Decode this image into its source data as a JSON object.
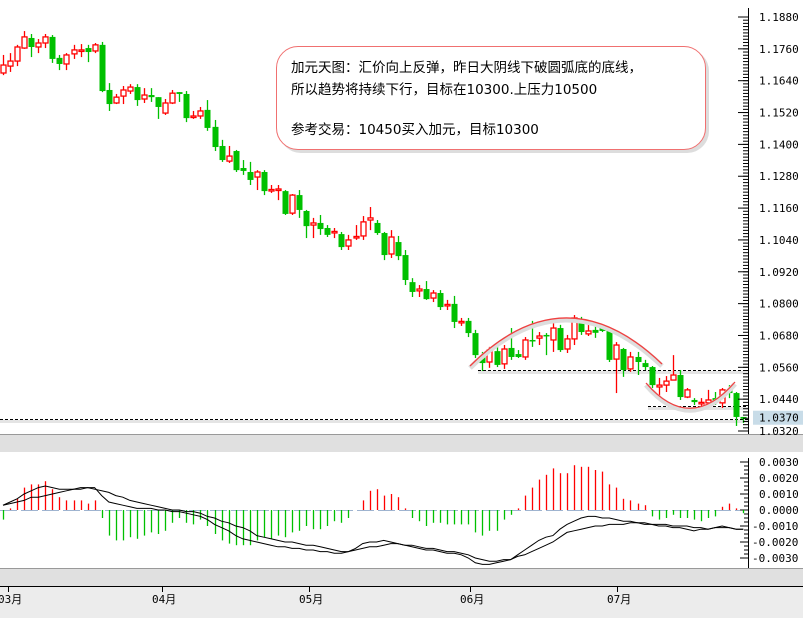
{
  "annotation": {
    "line1": "加元天图：汇价向上反弹，昨日大阴线下破圆弧底的底线，",
    "line2": "所以趋势将持续下行，目标在10300.上压力10500",
    "line3": "参考交易：10450买入加元，目标10300"
  },
  "colors": {
    "up": "#ff0000",
    "down": "#00c000",
    "line": "#000000",
    "arc": "#f04040",
    "last_price_bg": "#c8dce8"
  },
  "chart_data": [
    {
      "type": "candlestick",
      "price_axis": {
        "ticks": [
          "1.1880",
          "1.1760",
          "1.1640",
          "1.1520",
          "1.1400",
          "1.1280",
          "1.1160",
          "1.1040",
          "1.0920",
          "1.0800",
          "1.0680",
          "1.0560",
          "1.0440",
          "1.0320"
        ],
        "ylim": [
          1.032,
          1.188
        ]
      },
      "last_price": "1.0370",
      "x_ticks": [
        "03月",
        "04月",
        "05月",
        "06月",
        "07月"
      ],
      "horizontal_lines": [
        1.055,
        1.0414,
        1.0365
      ],
      "ohlc": [
        [
          1.1669,
          1.1737,
          1.1661,
          1.1699
        ],
        [
          1.1695,
          1.1744,
          1.1673,
          1.1714
        ],
        [
          1.1714,
          1.1775,
          1.1695,
          1.1767
        ],
        [
          1.1763,
          1.1827,
          1.176,
          1.1805
        ],
        [
          1.1801,
          1.1816,
          1.1729,
          1.1767
        ],
        [
          1.1767,
          1.1797,
          1.1744,
          1.1782
        ],
        [
          1.1782,
          1.1816,
          1.1763,
          1.1805
        ],
        [
          1.1805,
          1.1812,
          1.1707,
          1.1722
        ],
        [
          1.1726,
          1.1737,
          1.168,
          1.1703
        ],
        [
          1.1703,
          1.1744,
          1.168,
          1.1737
        ],
        [
          1.1741,
          1.1775,
          1.1722,
          1.1756
        ],
        [
          1.1752,
          1.1778,
          1.1729,
          1.1756
        ],
        [
          1.1763,
          1.1775,
          1.171,
          1.1748
        ],
        [
          1.1752,
          1.1782,
          1.1744,
          1.1775
        ],
        [
          1.1775,
          1.1786,
          1.1597,
          1.1601
        ],
        [
          1.1605,
          1.1631,
          1.1526,
          1.1552
        ],
        [
          1.1556,
          1.159,
          1.1552,
          1.1578
        ],
        [
          1.1582,
          1.162,
          1.1552,
          1.1605
        ],
        [
          1.1601,
          1.1627,
          1.159,
          1.1616
        ],
        [
          1.1616,
          1.1627,
          1.1545,
          1.1567
        ],
        [
          1.1571,
          1.1612,
          1.1556,
          1.1586
        ],
        [
          1.1586,
          1.1612,
          1.156,
          1.1578
        ],
        [
          1.1578,
          1.1578,
          1.1496,
          1.1541
        ],
        [
          1.1518,
          1.1571,
          1.1511,
          1.1556
        ],
        [
          1.1556,
          1.1605,
          1.1552,
          1.1593
        ],
        [
          1.1597,
          1.1597,
          1.156,
          1.159
        ],
        [
          1.159,
          1.1601,
          1.1484,
          1.1499
        ],
        [
          1.1503,
          1.1526,
          1.1496,
          1.1507
        ],
        [
          1.1507,
          1.1541,
          1.1496,
          1.1526
        ],
        [
          1.153,
          1.1567,
          1.1451,
          1.1462
        ],
        [
          1.1466,
          1.1492,
          1.1375,
          1.139
        ],
        [
          1.1394,
          1.1417,
          1.1334,
          1.1341
        ],
        [
          1.1337,
          1.1394,
          1.133,
          1.1356
        ],
        [
          1.1375,
          1.1379,
          1.1296,
          1.1303
        ],
        [
          1.1311,
          1.1341,
          1.1285,
          1.13
        ],
        [
          1.1296,
          1.1334,
          1.1247,
          1.1266
        ],
        [
          1.1277,
          1.1303,
          1.1228,
          1.1296
        ],
        [
          1.1296,
          1.1303,
          1.1209,
          1.1224
        ],
        [
          1.1226,
          1.1247,
          1.1217,
          1.123
        ],
        [
          1.1228,
          1.1247,
          1.119,
          1.1232
        ],
        [
          1.1224,
          1.1228,
          1.1134,
          1.1138
        ],
        [
          1.1141,
          1.1213,
          1.1134,
          1.1209
        ],
        [
          1.1209,
          1.1228,
          1.1123,
          1.1153
        ],
        [
          1.1149,
          1.1153,
          1.1047,
          1.1092
        ],
        [
          1.1096,
          1.1123,
          1.1047,
          1.1104
        ],
        [
          1.1104,
          1.1134,
          1.1059,
          1.1081
        ],
        [
          1.1085,
          1.1096,
          1.1051,
          1.1059
        ],
        [
          1.1068,
          1.1085,
          1.1047,
          1.1072
        ],
        [
          1.1062,
          1.107,
          1.1002,
          1.1013
        ],
        [
          1.1017,
          1.1059,
          1.1002,
          1.104
        ],
        [
          1.1049,
          1.1096,
          1.104,
          1.1053
        ],
        [
          1.1055,
          1.113,
          1.104,
          1.1108
        ],
        [
          1.1115,
          1.1164,
          1.1077,
          1.1123
        ],
        [
          1.1104,
          1.1115,
          1.1059,
          1.1066
        ],
        [
          1.1066,
          1.107,
          1.0964,
          1.0983
        ],
        [
          1.0987,
          1.1077,
          1.0972,
          1.1051
        ],
        [
          1.1032,
          1.1055,
          1.0964,
          1.0979
        ],
        [
          1.0983,
          1.1002,
          1.087,
          1.0889
        ],
        [
          1.0881,
          1.0896,
          1.0825,
          1.0844
        ],
        [
          1.0848,
          1.087,
          1.0825,
          1.0855
        ],
        [
          1.0855,
          1.0885,
          1.0814,
          1.0817
        ],
        [
          1.0821,
          1.0851,
          1.0806,
          1.084
        ],
        [
          1.084,
          1.0851,
          1.0776,
          1.0787
        ],
        [
          1.0793,
          1.0814,
          1.0776,
          1.0797
        ],
        [
          1.0799,
          1.0829,
          1.0708,
          1.0731
        ],
        [
          1.0729,
          1.0746,
          1.0716,
          1.0733
        ],
        [
          1.0735,
          1.0746,
          1.0674,
          1.0689
        ],
        [
          1.0689,
          1.0701,
          1.0595,
          1.0606
        ],
        [
          1.0603,
          1.0618,
          1.0546,
          1.0576
        ],
        [
          1.058,
          1.0637,
          1.0558,
          1.0625
        ],
        [
          1.0621,
          1.0637,
          1.0561,
          1.0569
        ],
        [
          1.0573,
          1.0644,
          1.0554,
          1.0629
        ],
        [
          1.0633,
          1.0708,
          1.0588,
          1.0599
        ],
        [
          1.061,
          1.0625,
          1.0595,
          1.0599
        ],
        [
          1.0599,
          1.0674,
          1.0588,
          1.0663
        ],
        [
          1.0663,
          1.0735,
          1.0637,
          1.0659
        ],
        [
          1.067,
          1.0693,
          1.0644,
          1.0678
        ],
        [
          1.0682,
          1.0689,
          1.0606,
          1.0678
        ],
        [
          1.0663,
          1.0738,
          1.0618,
          1.0708
        ],
        [
          1.0708,
          1.072,
          1.0618,
          1.0625
        ],
        [
          1.0629,
          1.0682,
          1.0614,
          1.0667
        ],
        [
          1.0667,
          1.0757,
          1.0644,
          1.0746
        ],
        [
          1.0742,
          1.075,
          1.0682,
          1.0693
        ],
        [
          1.0686,
          1.0727,
          1.0678,
          1.0697
        ],
        [
          1.0701,
          1.0723,
          1.0671,
          1.069
        ],
        [
          1.0712,
          1.072,
          1.0693,
          1.0697
        ],
        [
          1.0704,
          1.0708,
          1.058,
          1.0588
        ],
        [
          1.0591,
          1.0655,
          1.0463,
          1.0644
        ],
        [
          1.0629,
          1.0633,
          1.0524,
          1.055
        ],
        [
          1.0554,
          1.0618,
          1.0543,
          1.0599
        ],
        [
          1.0599,
          1.0618,
          1.0531,
          1.058
        ],
        [
          1.0576,
          1.0588,
          1.055,
          1.0561
        ],
        [
          1.0561,
          1.0565,
          1.0482,
          1.0493
        ],
        [
          1.0486,
          1.052,
          1.0444,
          1.0493
        ],
        [
          1.0493,
          1.0527,
          1.0467,
          1.0508
        ],
        [
          1.0512,
          1.0606,
          1.0512,
          1.0531
        ],
        [
          1.0531,
          1.055,
          1.0437,
          1.0448
        ],
        [
          1.0448,
          1.0482,
          1.0444,
          1.0475
        ],
        [
          1.0437,
          1.0444,
          1.0418,
          1.0429
        ],
        [
          1.0424,
          1.0444,
          1.0407,
          1.0428
        ],
        [
          1.0426,
          1.0475,
          1.0407,
          1.0437
        ],
        [
          1.0444,
          1.0467,
          1.0418,
          1.0433
        ],
        [
          1.0426,
          1.0482,
          1.0407,
          1.0475
        ],
        [
          1.0475,
          1.0493,
          1.0444,
          1.0463
        ],
        [
          1.0463,
          1.0467,
          1.0339,
          1.0373
        ],
        [
          1.0373,
          1.0373,
          1.035,
          1.0366
        ]
      ]
    },
    {
      "type": "macd",
      "axis": {
        "ticks": [
          "0.0030",
          "0.0020",
          "0.0010",
          "0.0000",
          "-0.0010",
          "-0.0020",
          "-0.0030"
        ],
        "ylim": [
          -0.003,
          0.003
        ]
      },
      "histogram": [
        -0.0006,
        0.0001,
        0.0007,
        0.0014,
        0.0016,
        0.0016,
        0.0018,
        0.0013,
        0.0008,
        0.0006,
        0.0006,
        0.0006,
        0.0004,
        0.0006,
        -0.0005,
        -0.0016,
        -0.0019,
        -0.0019,
        -0.0017,
        -0.0018,
        -0.0016,
        -0.0014,
        -0.0015,
        -0.0013,
        -0.0008,
        -0.0005,
        -0.0008,
        -0.0009,
        -0.0006,
        -0.001,
        -0.0015,
        -0.0019,
        -0.0021,
        -0.0022,
        -0.0022,
        -0.0022,
        -0.0019,
        -0.0017,
        -0.0018,
        -0.0016,
        -0.0017,
        -0.0014,
        -0.0013,
        -0.001,
        -0.0012,
        -0.0012,
        -0.001,
        -0.0007,
        -0.0008,
        -0.0005,
        0.0,
        0.0006,
        0.0012,
        0.0013,
        0.0009,
        0.001,
        0.0008,
        0.0001,
        -0.0005,
        -0.0007,
        -0.001,
        -0.0008,
        -0.0008,
        -0.0009,
        -0.0009,
        -0.0009,
        -0.0009,
        -0.0014,
        -0.0016,
        -0.0013,
        -0.0013,
        -0.0006,
        -0.0003,
        0.0001,
        0.0009,
        0.0014,
        0.0019,
        0.0022,
        0.0026,
        0.0023,
        0.0023,
        0.0028,
        0.0027,
        0.0027,
        0.0025,
        0.0024,
        0.0016,
        0.0014,
        0.0007,
        0.0006,
        0.0004,
        0.0003,
        -0.0004,
        -0.0006,
        -0.0005,
        -0.0003,
        -0.0005,
        -0.0005,
        -0.0006,
        -0.0007,
        -0.0005,
        -0.0004,
        0.0002,
        0.0004,
        0.0001,
        -0.0002
      ],
      "dif": [
        0.0003,
        0.0005,
        0.0007,
        0.001,
        0.0012,
        0.0014,
        0.0015,
        0.0014,
        0.0013,
        0.0013,
        0.0013,
        0.0014,
        0.0014,
        0.0014,
        0.0009,
        0.0005,
        0.0004,
        0.0003,
        0.0002,
        0.0001,
        0.0001,
        0.0001,
        0.0,
        0.0,
        -0.0001,
        -0.0001,
        -0.0002,
        -0.0003,
        -0.0004,
        -0.0006,
        -0.0009,
        -0.0011,
        -0.0013,
        -0.0016,
        -0.0018,
        -0.0019,
        -0.002,
        -0.0021,
        -0.0022,
        -0.0023,
        -0.0023,
        -0.0024,
        -0.0024,
        -0.0025,
        -0.0025,
        -0.0026,
        -0.0026,
        -0.0027,
        -0.0027,
        -0.0026,
        -0.0024,
        -0.0021,
        -0.002,
        -0.002,
        -0.0019,
        -0.002,
        -0.0021,
        -0.0022,
        -0.0023,
        -0.0024,
        -0.0025,
        -0.0025,
        -0.0026,
        -0.0027,
        -0.0027,
        -0.0028,
        -0.003,
        -0.0033,
        -0.0034,
        -0.0034,
        -0.0033,
        -0.0032,
        -0.0031,
        -0.0028,
        -0.0025,
        -0.0022,
        -0.0019,
        -0.0017,
        -0.0016,
        -0.0012,
        -0.0009,
        -0.0007,
        -0.0005,
        -0.0004,
        -0.0004,
        -0.0005,
        -0.0005,
        -0.0006,
        -0.0007,
        -0.0007,
        -0.0008,
        -0.0009,
        -0.0009,
        -0.001,
        -0.001,
        -0.0011,
        -0.0011,
        -0.0012,
        -0.0013,
        -0.0012,
        -0.0012,
        -0.0011,
        -0.001,
        -0.0011,
        -0.0012,
        -0.0012
      ],
      "dea": [
        0.0003,
        0.0004,
        0.0005,
        0.0006,
        0.0008,
        0.0008,
        0.0009,
        0.001,
        0.0011,
        0.0012,
        0.0013,
        0.0013,
        0.0014,
        0.0013,
        0.0012,
        0.0011,
        0.0009,
        0.0008,
        0.0006,
        0.0005,
        0.0004,
        0.0003,
        0.0002,
        0.0001,
        0.0,
        0.0,
        -0.0001,
        -0.0001,
        -0.0002,
        -0.0004,
        -0.0005,
        -0.0007,
        -0.0008,
        -0.001,
        -0.0011,
        -0.0013,
        -0.0016,
        -0.0017,
        -0.0018,
        -0.0019,
        -0.002,
        -0.002,
        -0.0021,
        -0.0022,
        -0.0022,
        -0.0023,
        -0.0024,
        -0.0025,
        -0.0026,
        -0.0026,
        -0.0025,
        -0.0024,
        -0.0023,
        -0.0023,
        -0.0022,
        -0.0021,
        -0.0021,
        -0.0022,
        -0.0022,
        -0.0023,
        -0.0024,
        -0.0024,
        -0.0025,
        -0.0026,
        -0.0026,
        -0.0027,
        -0.0028,
        -0.003,
        -0.0031,
        -0.0032,
        -0.0032,
        -0.0031,
        -0.0031,
        -0.0029,
        -0.0028,
        -0.0026,
        -0.0024,
        -0.0022,
        -0.002,
        -0.0017,
        -0.0014,
        -0.0013,
        -0.0012,
        -0.0011,
        -0.001,
        -0.001,
        -0.0009,
        -0.0009,
        -0.0009,
        -0.0008,
        -0.0008,
        -0.0008,
        -0.0009,
        -0.0009,
        -0.0009,
        -0.001,
        -0.001,
        -0.001,
        -0.0011,
        -0.0011,
        -0.0012,
        -0.0011,
        -0.0011,
        -0.0011,
        -0.0012,
        -0.0012
      ]
    }
  ]
}
